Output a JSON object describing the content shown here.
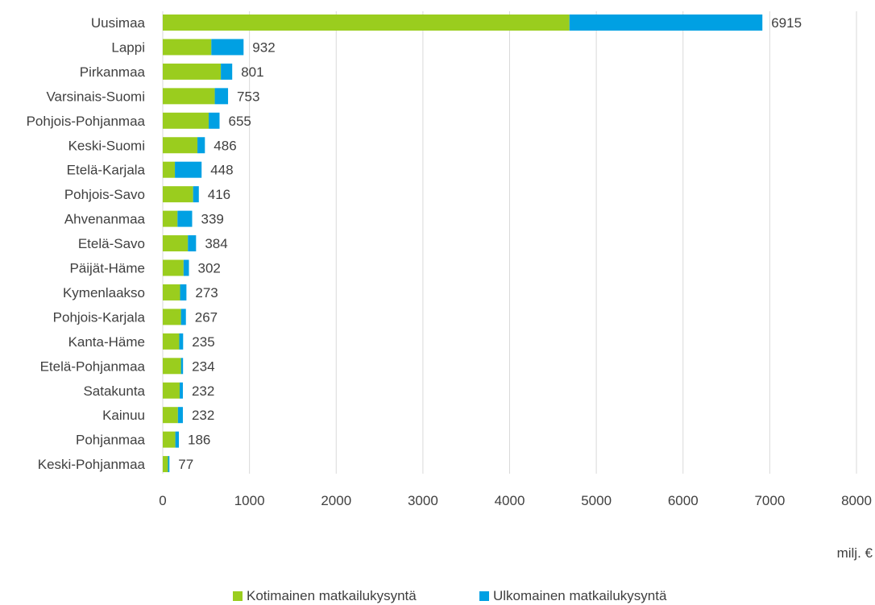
{
  "chart_data": {
    "type": "bar",
    "orientation": "horizontal",
    "stacked": true,
    "categories": [
      "Uusimaa",
      "Lappi",
      "Pirkanmaa",
      "Varsinais-Suomi",
      "Pohjois-Pohjanmaa",
      "Keski-Suomi",
      "Etelä-Karjala",
      "Pohjois-Savo",
      "Ahvenanmaa",
      "Etelä-Savo",
      "Päijät-Häme",
      "Kymenlaakso",
      "Pohjois-Karjala",
      "Kanta-Häme",
      "Etelä-Pohjanmaa",
      "Satakunta",
      "Kainuu",
      "Pohjanmaa",
      "Keski-Pohjanmaa"
    ],
    "series": [
      {
        "name": "Kotimainen matkailukysyntä",
        "color": "#9acd1e",
        "values": [
          4690,
          560,
          670,
          600,
          530,
          400,
          140,
          350,
          170,
          290,
          240,
          200,
          210,
          190,
          210,
          195,
          175,
          145,
          60
        ]
      },
      {
        "name": "Ulkomainen matkailukysyntä",
        "color": "#00a0e3",
        "values": [
          2225,
          372,
          131,
          153,
          125,
          86,
          308,
          66,
          169,
          94,
          62,
          73,
          57,
          45,
          24,
          37,
          57,
          41,
          17
        ]
      }
    ],
    "totals": [
      "6915",
      "932",
      "801",
      "753",
      "655",
      "486",
      "448",
      "416",
      "339",
      "384",
      "302",
      "273",
      "267",
      "235",
      "234",
      "232",
      "232",
      "186",
      "77"
    ],
    "xlim": [
      0,
      8000
    ],
    "xticks": [
      "0",
      "1000",
      "2000",
      "3000",
      "4000",
      "5000",
      "6000",
      "7000",
      "8000"
    ],
    "unit_label": "milj. €",
    "grid": true,
    "legend_position": "bottom"
  }
}
